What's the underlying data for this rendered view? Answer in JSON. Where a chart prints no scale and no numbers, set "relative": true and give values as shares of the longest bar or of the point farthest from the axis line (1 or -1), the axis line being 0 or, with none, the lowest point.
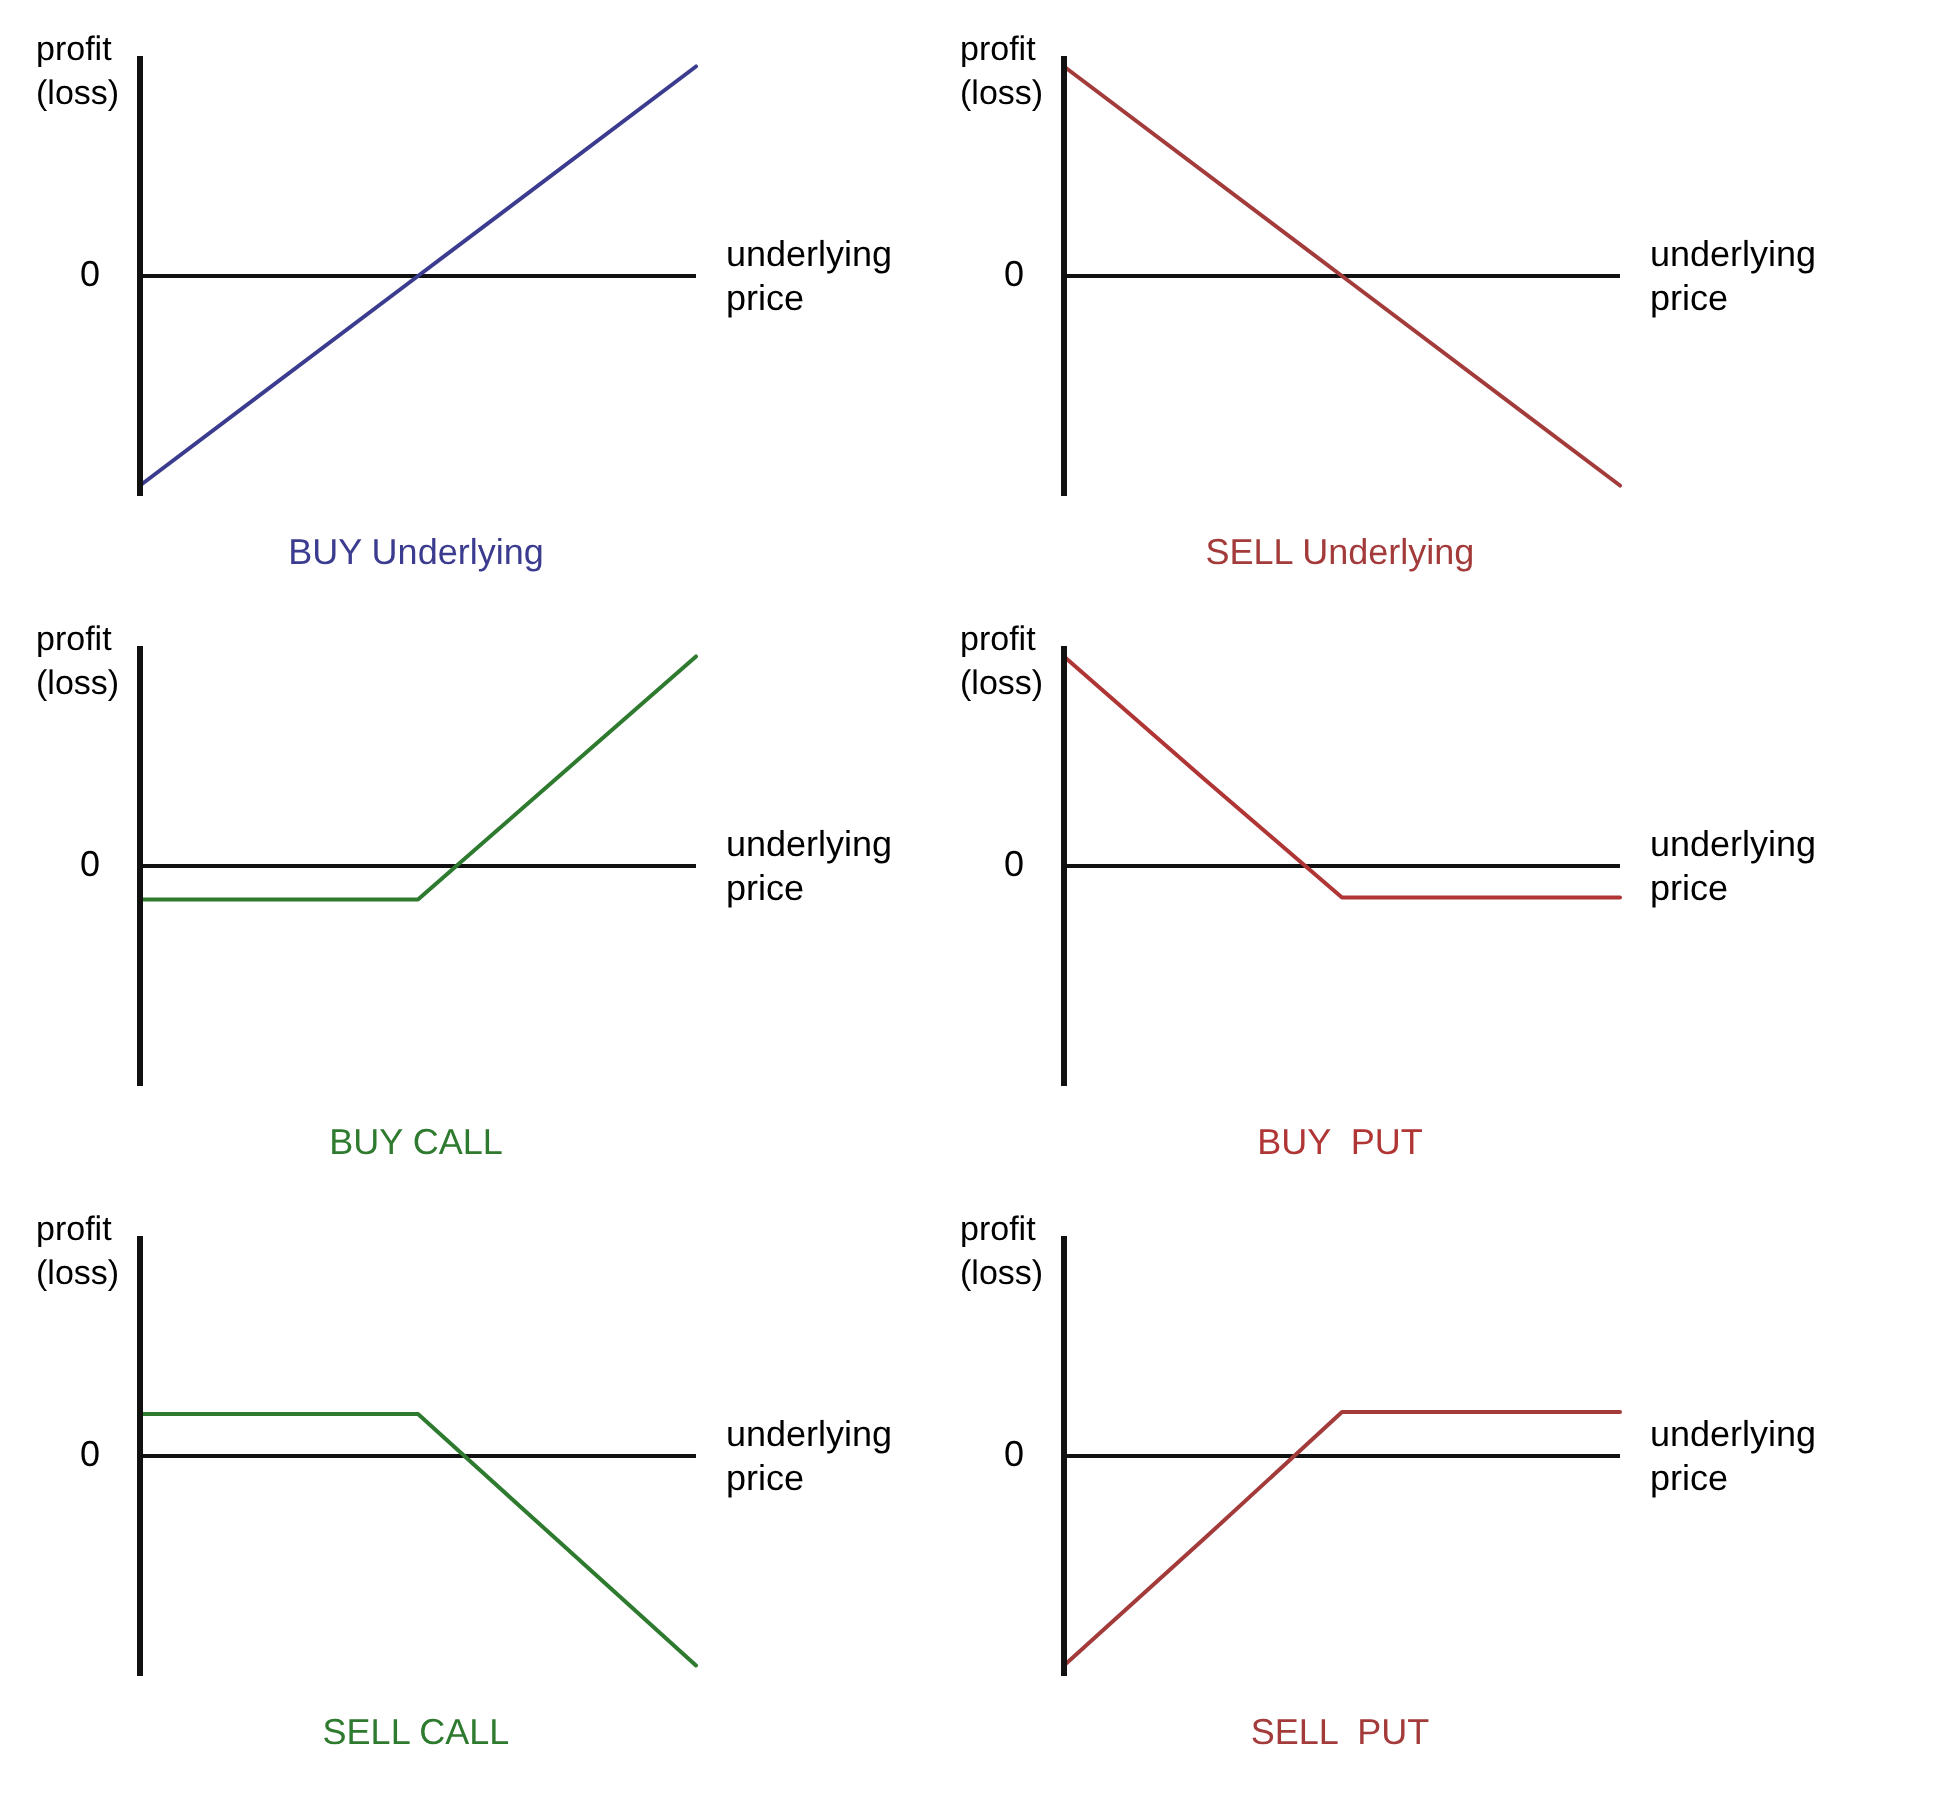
{
  "chart_data": [
    {
      "type": "line",
      "title": "BUY Underlying",
      "xlabel": "underlying price",
      "ylabel": "profit (loss)",
      "relative": true,
      "categories": [
        null,
        null,
        null
      ],
      "values": [
        -1,
        0,
        1
      ],
      "color": "#3b3b8f",
      "ref_lines": [
        {
          "axis": "y",
          "value": 0,
          "label": "0"
        }
      ]
    },
    {
      "type": "line",
      "title": "SELL Underlying",
      "xlabel": "underlying price",
      "ylabel": "profit (loss)",
      "relative": true,
      "categories": [
        null,
        null,
        null
      ],
      "values": [
        1,
        0,
        -1
      ],
      "color": "#a33b3b",
      "ref_lines": [
        {
          "axis": "y",
          "value": 0,
          "label": "0"
        }
      ]
    },
    {
      "type": "line",
      "title": "BUY CALL",
      "xlabel": "underlying price",
      "ylabel": "profit (loss)",
      "relative": true,
      "categories": [
        null,
        null,
        null,
        null,
        null
      ],
      "values": [
        -0.16,
        -0.16,
        -0.16,
        0.42,
        1
      ],
      "color": "#2e7a2e",
      "ref_lines": [
        {
          "axis": "y",
          "value": 0,
          "label": "0"
        }
      ]
    },
    {
      "type": "line",
      "title": "BUY  PUT",
      "xlabel": "underlying price",
      "ylabel": "profit (loss)",
      "relative": true,
      "categories": [
        null,
        null,
        null,
        null,
        null
      ],
      "values": [
        1,
        0.42,
        -0.15,
        -0.15,
        -0.15
      ],
      "color": "#b03535",
      "ref_lines": [
        {
          "axis": "y",
          "value": 0,
          "label": "0"
        }
      ]
    },
    {
      "type": "line",
      "title": "SELL CALL",
      "xlabel": "underlying price",
      "ylabel": "profit (loss)",
      "relative": true,
      "categories": [
        null,
        null,
        null,
        null,
        null
      ],
      "values": [
        0.2,
        0.2,
        0.2,
        -0.4,
        -1
      ],
      "color": "#2e7a2e",
      "ref_lines": [
        {
          "axis": "y",
          "value": 0,
          "label": "0"
        }
      ]
    },
    {
      "type": "line",
      "title": "SELL  PUT",
      "xlabel": "underlying price",
      "ylabel": "profit (loss)",
      "relative": true,
      "categories": [
        null,
        null,
        null,
        null,
        null
      ],
      "values": [
        -1,
        -0.4,
        0.21,
        0.21,
        0.21
      ],
      "color": "#a33b3b",
      "ref_lines": [
        {
          "axis": "y",
          "value": 0,
          "label": "0"
        }
      ]
    }
  ]
}
